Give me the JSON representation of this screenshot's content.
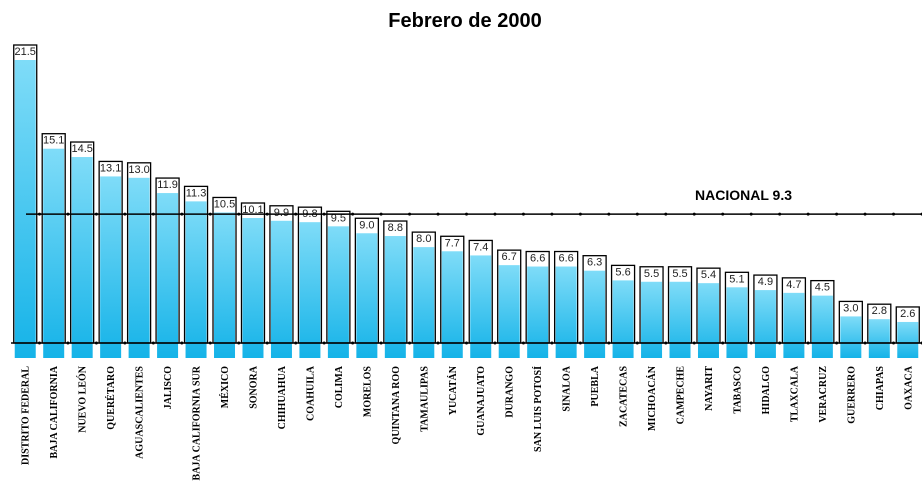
{
  "chart_data": {
    "type": "bar",
    "title": "Febrero de 2000",
    "categories": [
      "DISTRITO FEDERAL",
      "BAJA CALIFORNIA",
      "NUEVO LEÓN",
      "QUERÉTARO",
      "AGUASCALIENTES",
      "JALISCO",
      "BAJA CALIFORNIA SUR",
      "MÉXICO",
      "SONORA",
      "CHIHUAHUA",
      "COAHUILA",
      "COLIMA",
      "MORELOS",
      "QUINTANA ROO",
      "TAMAULIPAS",
      "YUCATÁN",
      "GUANAJUATO",
      "DURANGO",
      "SAN LUIS POTOSÍ",
      "SINALOA",
      "PUEBLA",
      "ZACATECAS",
      "MICHOACÁN",
      "CAMPECHE",
      "NAYARIT",
      "TABASCO",
      "HIDALGO",
      "TLAXCALA",
      "VERACRUZ",
      "GUERRERO",
      "CHIAPAS",
      "OAXACA"
    ],
    "values": [
      21.5,
      15.1,
      14.5,
      13.1,
      13.0,
      11.9,
      11.3,
      10.5,
      10.1,
      9.9,
      9.8,
      9.5,
      9.0,
      8.8,
      8.0,
      7.7,
      7.4,
      6.7,
      6.6,
      6.6,
      6.3,
      5.6,
      5.5,
      5.5,
      5.4,
      5.1,
      4.9,
      4.7,
      4.5,
      3.0,
      2.8,
      2.6
    ],
    "value_labels": [
      "21.5",
      "15.1",
      "14.5",
      "13.1",
      "13.0",
      "11.9",
      "11.3",
      "10.5",
      "10.1",
      "9.9",
      "9.8",
      "9.5",
      "9.0",
      "8.8",
      "8.0",
      "7.7",
      "7.4",
      "6.7",
      "6.6",
      "6.6",
      "6.3",
      "5.6",
      "5.5",
      "5.5",
      "5.4",
      "5.1",
      "4.9",
      "4.7",
      "4.5",
      "3.0",
      "2.8",
      "2.6"
    ],
    "color": "#1bb8ea",
    "reference": {
      "label": "NACIONAL",
      "value": 9.3
    }
  }
}
